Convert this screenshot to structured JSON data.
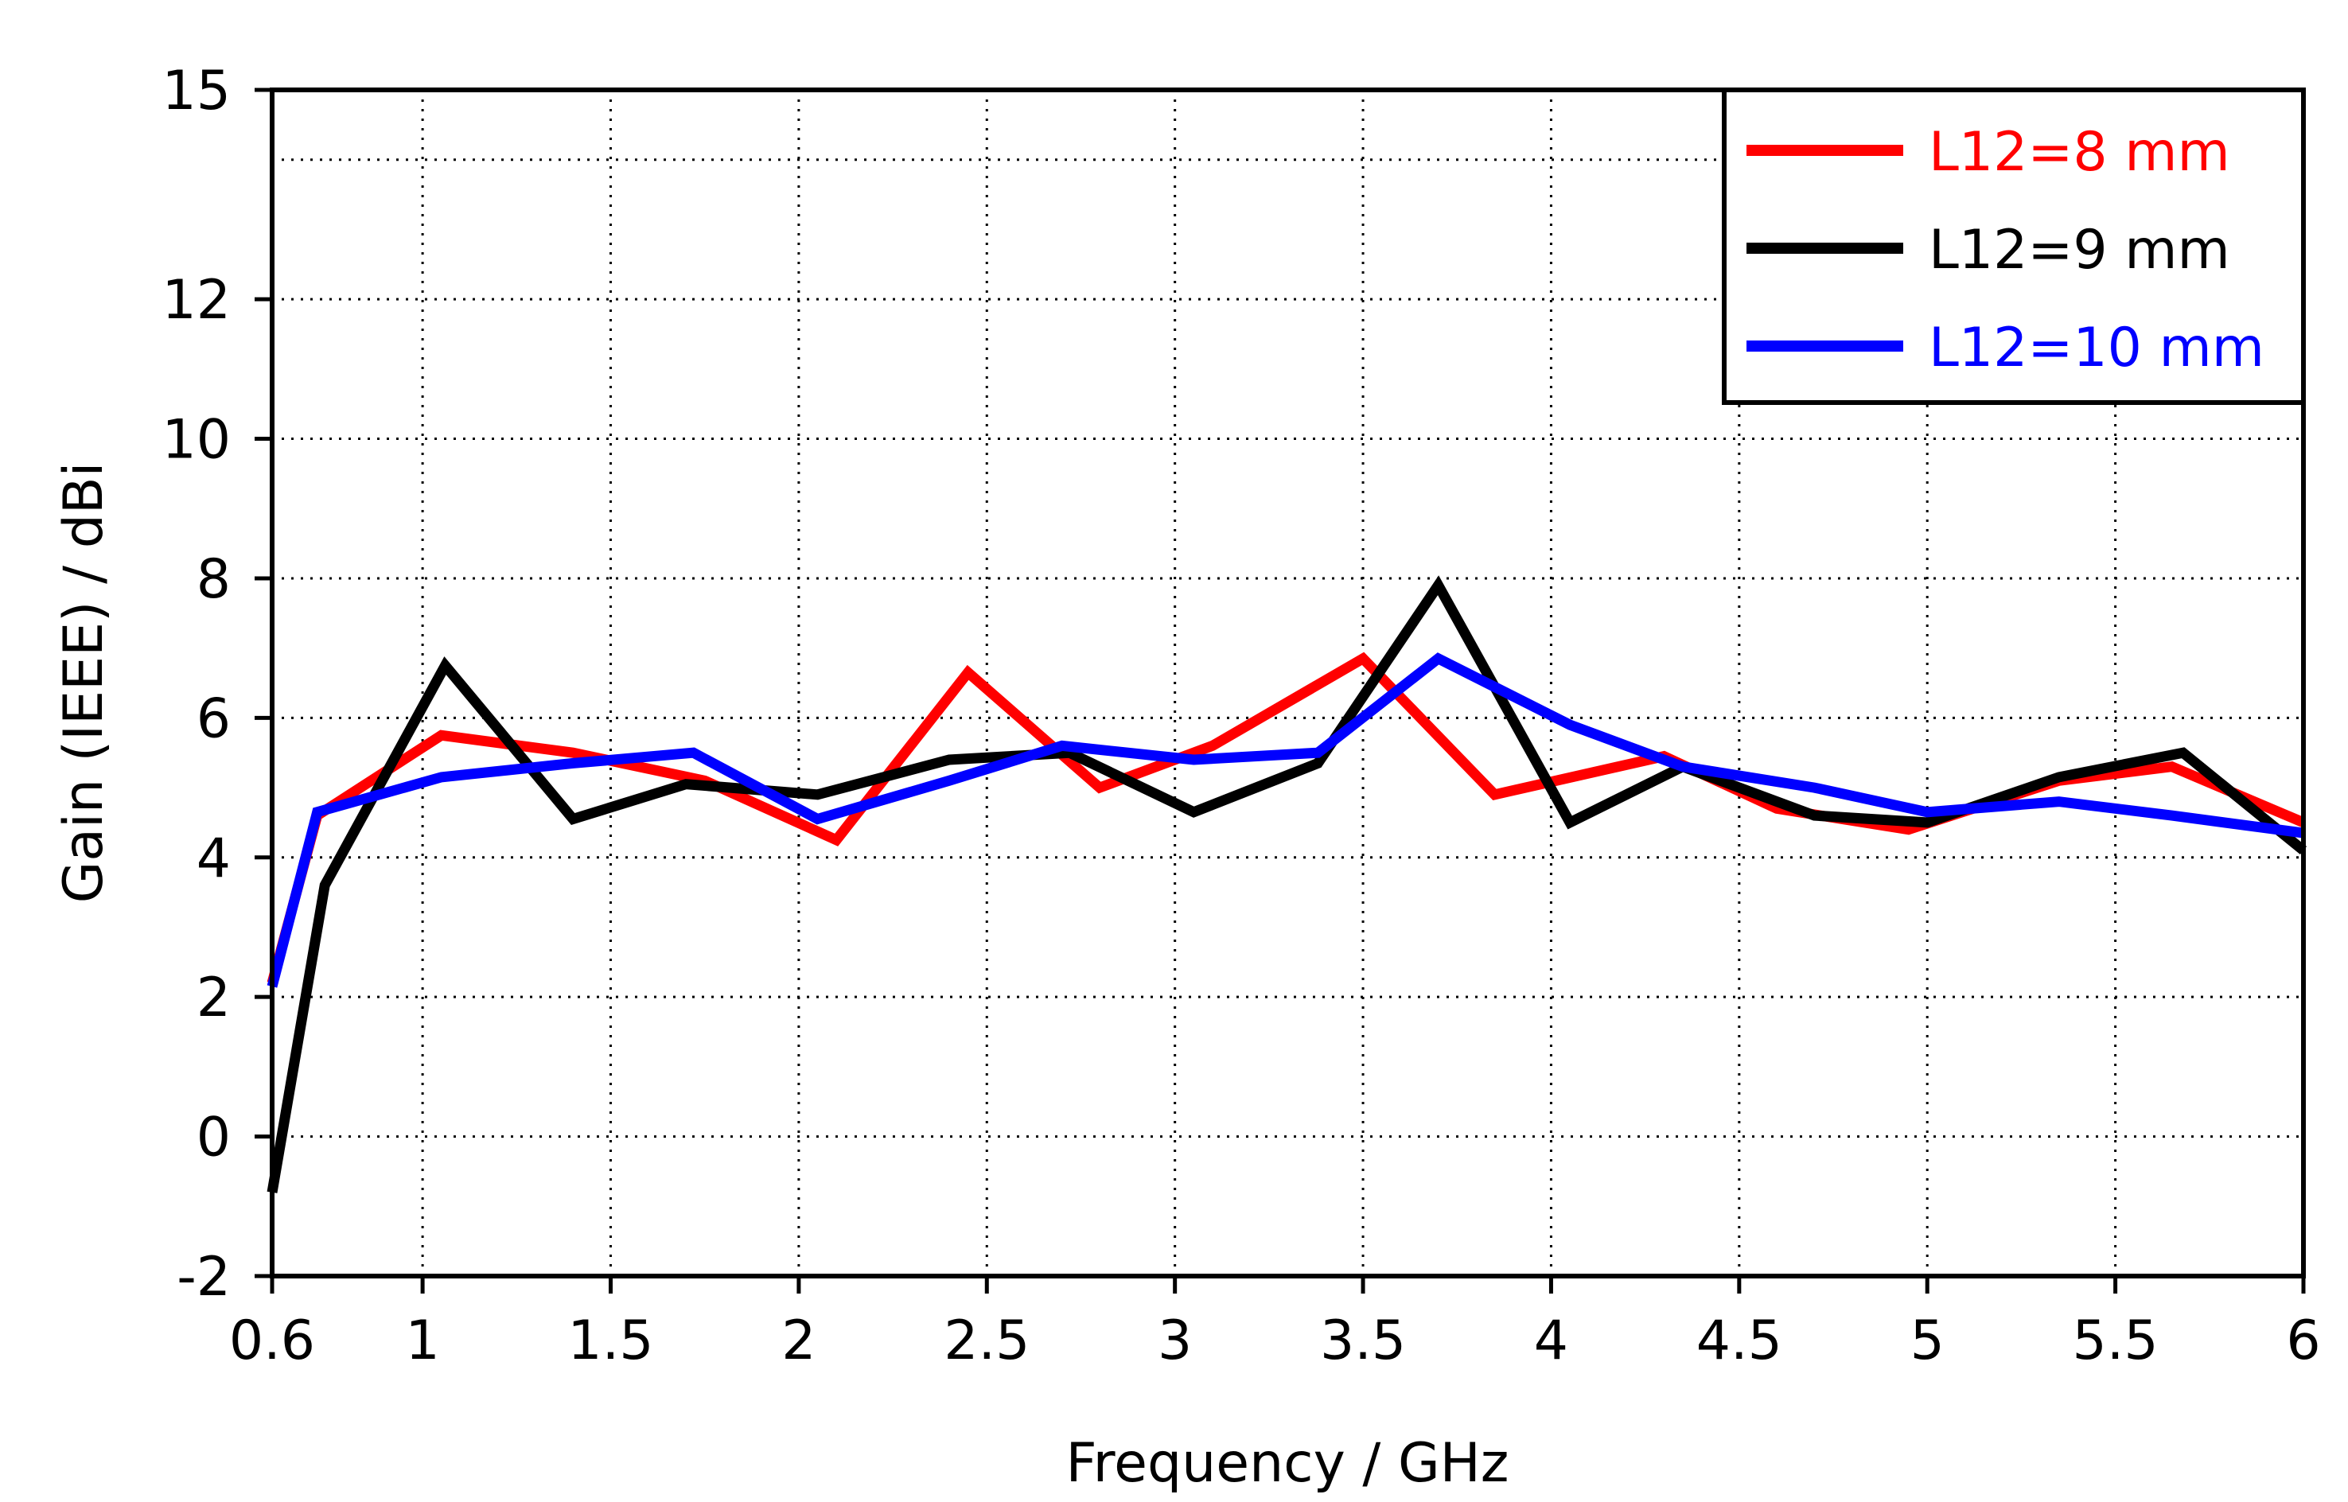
{
  "chart_data": {
    "type": "line",
    "xlabel": "Frequency / GHz",
    "ylabel": "Gain (IEEE) / dBi",
    "xlim": [
      0.6,
      6
    ],
    "ylim": [
      -2,
      15
    ],
    "x_ticks": [
      0.6,
      1,
      1.5,
      2,
      2.5,
      3,
      3.5,
      4,
      4.5,
      5,
      5.5,
      6
    ],
    "x_tick_labels": [
      "0.6",
      "1",
      "1.5",
      "2",
      "2.5",
      "3",
      "3.5",
      "4",
      "4.5",
      "5",
      "5.5",
      "6"
    ],
    "y_ticks": [
      -2,
      0,
      2,
      4,
      6,
      8,
      10,
      12,
      15
    ],
    "y_tick_labels": [
      "-2",
      "0",
      "2",
      "4",
      "6",
      "8",
      "10",
      "12",
      "15"
    ],
    "y_grid_extra": [
      14
    ],
    "grid": true,
    "legend_position": "top-right",
    "series": [
      {
        "name": "L12=8 mm",
        "color": "#ff0000",
        "x": [
          0.6,
          0.72,
          1.05,
          1.4,
          1.75,
          2.1,
          2.45,
          2.8,
          3.1,
          3.5,
          3.85,
          4.3,
          4.6,
          4.95,
          5.35,
          5.65,
          6.0
        ],
        "y": [
          2.2,
          4.6,
          5.75,
          5.5,
          5.1,
          4.25,
          6.65,
          5.0,
          5.6,
          6.85,
          4.9,
          5.45,
          4.7,
          4.4,
          5.1,
          5.3,
          4.5
        ]
      },
      {
        "name": "L12=9 mm",
        "color": "#000000",
        "x": [
          0.6,
          0.74,
          1.06,
          1.4,
          1.7,
          2.05,
          2.4,
          2.72,
          3.05,
          3.38,
          3.7,
          4.05,
          4.35,
          4.7,
          5.0,
          5.35,
          5.68,
          6.0
        ],
        "y": [
          -0.8,
          3.6,
          6.75,
          4.55,
          5.05,
          4.9,
          5.4,
          5.5,
          4.65,
          5.35,
          7.9,
          4.5,
          5.3,
          4.6,
          4.5,
          5.15,
          5.5,
          4.1
        ]
      },
      {
        "name": "L12=10 mm",
        "color": "#0000ff",
        "x": [
          0.6,
          0.72,
          1.05,
          1.4,
          1.72,
          2.05,
          2.4,
          2.7,
          3.05,
          3.38,
          3.7,
          4.05,
          4.35,
          4.7,
          5.0,
          5.35,
          5.65,
          6.0
        ],
        "y": [
          2.15,
          4.65,
          5.15,
          5.35,
          5.5,
          4.55,
          5.1,
          5.6,
          5.4,
          5.5,
          6.85,
          5.9,
          5.3,
          5.0,
          4.65,
          4.8,
          4.6,
          4.35
        ]
      }
    ]
  }
}
